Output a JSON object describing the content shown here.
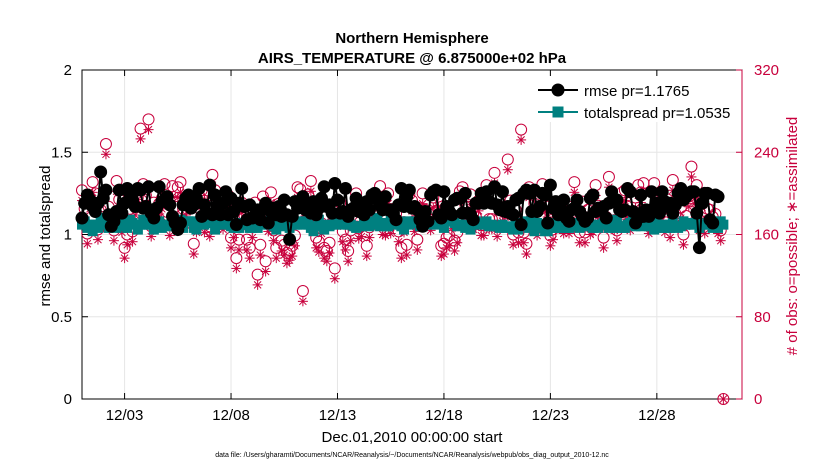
{
  "chart_data": {
    "type": "line",
    "title": "Northern Hemisphere",
    "subtitle": "AIRS_TEMPERATURE @ 6.875000e+02 hPa",
    "xlabel": "Dec.01,2010 00:00:00 start",
    "ylabel": "rmse and totalspread",
    "y2label": "# of obs: o=possible; ∗=assimilated",
    "footnote": "data file: /Users/gharamti/Documents/NCAR/Reanalysis/~/Documents/NCAR/Reanalysis/webpub/obs_diag_output_2010-12.nc",
    "xlim": [
      1,
      32
    ],
    "ylim": [
      0,
      2
    ],
    "y2lim": [
      0,
      320
    ],
    "x_ticks": [
      {
        "value": 3,
        "label": "12/03"
      },
      {
        "value": 8,
        "label": "12/08"
      },
      {
        "value": 13,
        "label": "12/13"
      },
      {
        "value": 18,
        "label": "12/18"
      },
      {
        "value": 23,
        "label": "12/23"
      },
      {
        "value": 28,
        "label": "12/28"
      }
    ],
    "y_ticks": [
      "0",
      "0.5",
      "1",
      "1.5",
      "2"
    ],
    "y_tick_values": [
      0,
      0.5,
      1,
      1.5,
      2
    ],
    "y2_ticks": [
      "0",
      "80",
      "160",
      "240",
      "320"
    ],
    "y2_tick_values": [
      0,
      80,
      160,
      240,
      320
    ],
    "grid": true,
    "legend_position": "top-right",
    "rmse_label": "rmse pr=1.1765",
    "spread_label": "totalspread pr=1.0535",
    "colors": {
      "rmse": "#000000",
      "spread": "#008080",
      "obs": "#c8003c",
      "grid": "#e6e6e6"
    },
    "x_start": 1.0,
    "x_step": 0.125,
    "rmse": [
      1.1,
      1.19,
      1.24,
      1.21,
      1.17,
      1.14,
      1.19,
      1.38,
      1.22,
      1.27,
      1.12,
      1.05,
      1.08,
      1.14,
      1.27,
      1.13,
      1.19,
      1.28,
      1.24,
      1.21,
      1.17,
      1.28,
      1.27,
      1.16,
      1.17,
      1.29,
      1.13,
      1.1,
      1.16,
      1.29,
      1.2,
      1.21,
      1.23,
      1.18,
      1.11,
      1.07,
      1.03,
      1.07,
      1.18,
      1.22,
      1.24,
      1.16,
      1.18,
      1.22,
      1.28,
      1.11,
      1.18,
      1.13,
      1.3,
      1.12,
      1.24,
      1.18,
      1.12,
      1.19,
      1.26,
      1.12,
      1.22,
      1.14,
      1.06,
      1.19,
      1.28,
      1.17,
      1.09,
      1.18,
      1.1,
      1.11,
      1.15,
      1.09,
      1.15,
      1.19,
      1.07,
      1.14,
      1.16,
      1.12,
      1.17,
      1.11,
      1.21,
      1.12,
      0.97,
      1.11,
      1.2,
      1.16,
      1.17,
      1.23,
      1.15,
      1.19,
      1.13,
      1.2,
      1.12,
      1.16,
      1.22,
      1.29,
      1.17,
      1.18,
      1.13,
      1.31,
      1.21,
      1.13,
      1.14,
      1.28,
      1.11,
      1.15,
      1.16,
      1.22,
      1.14,
      1.17,
      1.12,
      1.2,
      1.15,
      1.24,
      1.25,
      1.21,
      1.18,
      1.15,
      1.23,
      1.15,
      1.15,
      1.13,
      1.09,
      1.18,
      1.28,
      1.17,
      1.23,
      1.27,
      1.16,
      1.17,
      1.15,
      1.09,
      1.05,
      1.14,
      1.08,
      1.24,
      1.26,
      1.27,
      1.12,
      1.1,
      1.26,
      1.17,
      1.14,
      1.12,
      1.21,
      1.22,
      1.22,
      1.13,
      1.25,
      1.13,
      1.12,
      1.09,
      1.19,
      1.19,
      1.25,
      1.19,
      1.26,
      1.2,
      1.19,
      1.29,
      1.18,
      1.15,
      1.26,
      1.14,
      1.17,
      1.13,
      1.12,
      1.21,
      1.22,
      1.06,
      1.25,
      1.27,
      1.25,
      1.14,
      1.27,
      1.14,
      1.17,
      1.25,
      1.24,
      1.07,
      1.3,
      1.16,
      1.2,
      1.12,
      1.15,
      1.21,
      1.1,
      1.08,
      1.15,
      1.16,
      1.21,
      1.14,
      1.11,
      1.08,
      1.1,
      1.22,
      1.24,
      1.14,
      1.16,
      1.15,
      1.17,
      1.1,
      1.19,
      1.26,
      1.2,
      1.21,
      1.15,
      1.14,
      1.15,
      1.28,
      1.26,
      1.14,
      1.07,
      1.1,
      1.24,
      1.11,
      1.15,
      1.11,
      1.26,
      1.16,
      1.19,
      1.13,
      1.26,
      1.2,
      1.17,
      1.19,
      1.13,
      1.18,
      1.25,
      1.28,
      1.21,
      1.23,
      1.25,
      1.26,
      1.26,
      1.13,
      0.92,
      1.19,
      1.25,
      1.25,
      1.09,
      1.07,
      1.24,
      1.23
    ],
    "totalspread": [
      1.06,
      1.08,
      1.04,
      1.06,
      1.02,
      1.06,
      1.04,
      1.1,
      1.06,
      1.08,
      1.04,
      1.05,
      1.06,
      1.04,
      1.1,
      1.05,
      1.08,
      1.04,
      1.09,
      1.07,
      1.06,
      1.03,
      1.06,
      1.09,
      1.06,
      1.06,
      1.06,
      1.03,
      1.06,
      1.08,
      1.04,
      1.06,
      1.05,
      1.06,
      1.08,
      1.06,
      1.04,
      1.09,
      1.04,
      1.08,
      1.08,
      1.08,
      1.04,
      1.03,
      1.06,
      1.07,
      1.06,
      1.07,
      1.07,
      1.09,
      1.03,
      1.06,
      1.06,
      1.07,
      1.07,
      1.06,
      1.05,
      1.04,
      1.04,
      1.04,
      1.07,
      1.06,
      1.07,
      1.04,
      1.04,
      1.07,
      1.04,
      1.09,
      1.06,
      1.07,
      1.06,
      1.09,
      1.05,
      1.03,
      1.08,
      1.07,
      1.05,
      1.06,
      1.04,
      1.06,
      1.06,
      1.06,
      1.08,
      1.06,
      1.08,
      1.06,
      1.04,
      1.02,
      1.05,
      1.09,
      1.05,
      1.03,
      1.06,
      1.05,
      1.06,
      1.06,
      1.08,
      1.07,
      1.06,
      1.07,
      1.06,
      1.06,
      1.05,
      1.04,
      1.05,
      1.05,
      1.08,
      1.06,
      1.05,
      1.08,
      1.06,
      1.1,
      1.05,
      1.07,
      1.05,
      1.05,
      1.1,
      1.06,
      1.07,
      1.06,
      1.05,
      1.03,
      1.08,
      1.06,
      1.07,
      1.08,
      1.07,
      1.05,
      1.05,
      1.07,
      1.07,
      1.06,
      1.07,
      1.06,
      1.07,
      1.08,
      1.04,
      1.08,
      1.08,
      1.1,
      1.07,
      1.05,
      1.06,
      1.06,
      1.04,
      1.05,
      1.03,
      1.06,
      1.08,
      1.06,
      1.07,
      1.06,
      1.08,
      1.05,
      1.06,
      1.05,
      1.05,
      1.04,
      1.06,
      1.04,
      1.05,
      1.04,
      1.03,
      1.07,
      1.03,
      1.07,
      1.07,
      1.08,
      1.04,
      1.09,
      1.02,
      1.07,
      1.04,
      1.06,
      1.02,
      1.02,
      1.04,
      1.07,
      1.04,
      1.07,
      1.04,
      1.04,
      1.04,
      1.04,
      1.07,
      1.05,
      1.06,
      1.04,
      1.06,
      1.06,
      1.05,
      1.05,
      1.04,
      1.06,
      1.04,
      1.06,
      1.07,
      1.06,
      1.04,
      1.05,
      1.04,
      1.09,
      1.05,
      1.04,
      1.04,
      1.06,
      1.07,
      1.09,
      1.05,
      1.08,
      1.05,
      1.08,
      1.07,
      1.05,
      1.05,
      1.03,
      1.08,
      1.06,
      1.04,
      1.06,
      1.04,
      1.04,
      1.07,
      1.05,
      1.04,
      1.05,
      1.08,
      1.06,
      1.06,
      1.07,
      1.06,
      1.1,
      1.04,
      1.06,
      1.06,
      1.07,
      1.06,
      1.04,
      1.06,
      1.04,
      1.08,
      1.06
    ],
    "obs_possible": [
      203,
      185,
      161,
      195,
      211,
      200,
      165,
      184,
      177,
      248,
      187,
      178,
      164,
      212,
      194,
      172,
      147,
      160,
      185,
      163,
      189,
      204,
      263,
      209,
      198,
      272,
      168,
      191,
      181,
      190,
      195,
      209,
      182,
      169,
      207,
      187,
      206,
      211,
      185,
      189,
      196,
      179,
      151,
      172,
      198,
      203,
      172,
      203,
      168,
      218,
      203,
      175,
      188,
      175,
      191,
      198,
      157,
      167,
      137,
      155,
      191,
      179,
      155,
      147,
      167,
      191,
      121,
      150,
      197,
      134,
      173,
      201,
      164,
      147,
      190,
      154,
      150,
      142,
      145,
      149,
      159,
      206,
      204,
      105,
      188,
      199,
      212,
      182,
      157,
      153,
      171,
      147,
      144,
      152,
      185,
      127,
      178,
      191,
      163,
      155,
      144,
      164,
      183,
      200,
      166,
      168,
      184,
      149,
      167,
      187,
      195,
      180,
      207,
      170,
      169,
      200,
      171,
      182,
      180,
      163,
      147,
      172,
      150,
      199,
      193,
      173,
      155,
      186,
      200,
      184,
      181,
      174,
      196,
      183,
      197,
      149,
      151,
      157,
      159,
      176,
      154,
      162,
      202,
      206,
      180,
      187,
      199,
      175,
      177,
      193,
      169,
      169,
      208,
      175,
      175,
      220,
      168,
      176,
      183,
      187,
      233,
      193,
      160,
      184,
      162,
      262,
      162,
      151,
      206,
      176,
      190,
      169,
      193,
      209,
      192,
      187,
      159,
      165,
      183,
      184,
      186,
      171,
      183,
      171,
      187,
      211,
      180,
      162,
      192,
      162,
      184,
      170,
      172,
      208,
      188,
      186,
      157,
      177,
      216,
      181,
      174,
      164,
      185,
      201,
      203,
      187,
      174,
      182,
      196,
      208,
      201,
      210,
      180,
      171,
      176,
      210,
      175,
      194,
      184,
      172,
      194,
      167,
      213,
      180,
      176,
      186,
      160,
      178,
      197,
      226,
      200,
      208,
      174,
      196,
      171,
      185,
      184,
      177,
      180,
      171,
      164,
      0
    ],
    "obs_assimilated": [
      193,
      175,
      151,
      185,
      201,
      190,
      155,
      174,
      167,
      238,
      177,
      168,
      154,
      202,
      184,
      162,
      137,
      150,
      175,
      153,
      179,
      194,
      253,
      199,
      188,
      262,
      158,
      181,
      171,
      180,
      185,
      199,
      172,
      159,
      197,
      177,
      196,
      201,
      175,
      179,
      186,
      169,
      141,
      162,
      188,
      193,
      162,
      193,
      158,
      208,
      193,
      165,
      178,
      165,
      181,
      188,
      147,
      157,
      127,
      145,
      181,
      169,
      145,
      137,
      157,
      181,
      111,
      140,
      187,
      124,
      163,
      191,
      154,
      137,
      180,
      144,
      140,
      132,
      135,
      139,
      149,
      196,
      194,
      95,
      178,
      189,
      202,
      172,
      147,
      143,
      161,
      137,
      134,
      142,
      175,
      117,
      168,
      181,
      153,
      145,
      134,
      154,
      173,
      190,
      156,
      158,
      174,
      139,
      157,
      177,
      185,
      170,
      197,
      160,
      159,
      190,
      161,
      172,
      170,
      153,
      137,
      162,
      140,
      189,
      183,
      163,
      145,
      176,
      190,
      174,
      171,
      164,
      186,
      173,
      187,
      139,
      141,
      147,
      149,
      166,
      144,
      152,
      192,
      196,
      170,
      177,
      189,
      165,
      167,
      183,
      159,
      159,
      198,
      165,
      165,
      210,
      158,
      166,
      173,
      177,
      223,
      183,
      150,
      174,
      152,
      252,
      152,
      141,
      196,
      166,
      180,
      159,
      183,
      199,
      182,
      177,
      149,
      155,
      173,
      174,
      176,
      161,
      173,
      161,
      177,
      201,
      170,
      152,
      182,
      152,
      174,
      160,
      162,
      198,
      178,
      176,
      147,
      167,
      206,
      171,
      164,
      154,
      175,
      191,
      193,
      177,
      164,
      172,
      186,
      198,
      191,
      200,
      170,
      161,
      166,
      200,
      165,
      184,
      174,
      162,
      184,
      157,
      203,
      170,
      166,
      176,
      150,
      168,
      187,
      216,
      190,
      198,
      164,
      186,
      161,
      175,
      174,
      167,
      170,
      161,
      154,
      0
    ]
  }
}
